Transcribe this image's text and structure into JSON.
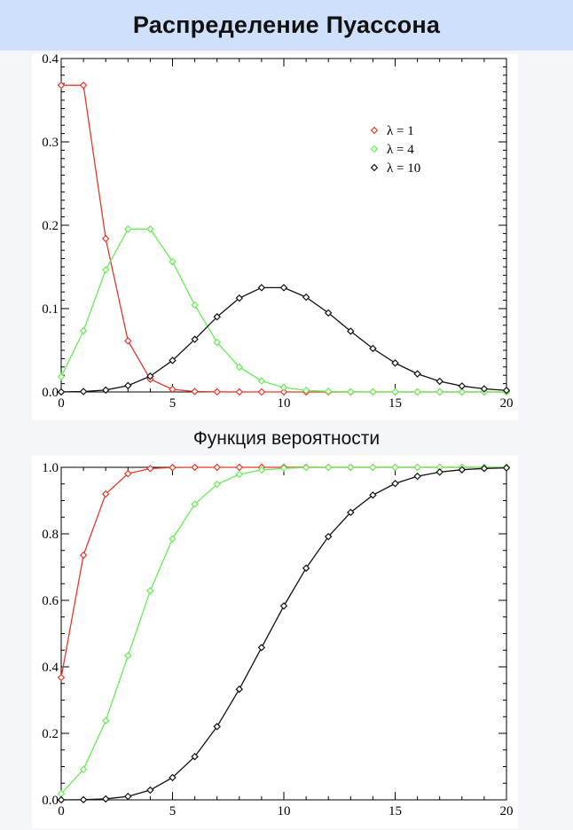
{
  "header": {
    "title": "Распределение Пуассона"
  },
  "caption": {
    "text": "Функция вероятности"
  },
  "chart_data": [
    {
      "type": "line",
      "title": "",
      "xlabel": "",
      "ylabel": "",
      "xlim": [
        0,
        20
      ],
      "ylim": [
        0,
        0.4
      ],
      "xticks": [
        "0",
        "5",
        "10",
        "15",
        "20"
      ],
      "yticks": [
        "0.0",
        "0.1",
        "0.2",
        "0.3",
        "0.4"
      ],
      "legend_position": "top-right",
      "grid": false,
      "x": [
        0,
        1,
        2,
        3,
        4,
        5,
        6,
        7,
        8,
        9,
        10,
        11,
        12,
        13,
        14,
        15,
        16,
        17,
        18,
        19,
        20
      ],
      "series": [
        {
          "name": "λ = 1",
          "color": "#e8372a",
          "values": [
            0.3679,
            0.3679,
            0.1839,
            0.0613,
            0.0153,
            0.0031,
            0.0005,
            0.0001,
            0,
            0,
            0,
            0,
            0,
            0,
            0,
            0,
            0,
            0,
            0,
            0,
            0
          ]
        },
        {
          "name": "λ = 4",
          "color": "#66ee55",
          "values": [
            0.0183,
            0.0733,
            0.1465,
            0.1954,
            0.1954,
            0.1563,
            0.1042,
            0.0595,
            0.0298,
            0.0132,
            0.0053,
            0.0019,
            0.0006,
            0.0002,
            0.0001,
            0,
            0,
            0,
            0,
            0,
            0
          ]
        },
        {
          "name": "λ = 10",
          "color": "#111111",
          "values": [
            5e-05,
            0.0005,
            0.0023,
            0.0076,
            0.0189,
            0.0378,
            0.0631,
            0.0901,
            0.1126,
            0.1251,
            0.1251,
            0.1137,
            0.0948,
            0.0729,
            0.0521,
            0.0347,
            0.0217,
            0.0128,
            0.0071,
            0.0037,
            0.0019
          ]
        }
      ]
    },
    {
      "type": "line",
      "title": "",
      "xlabel": "",
      "ylabel": "",
      "xlim": [
        0,
        20
      ],
      "ylim": [
        0,
        1.0
      ],
      "xticks": [
        "0",
        "5",
        "10",
        "15",
        "20"
      ],
      "yticks": [
        "0.0",
        "0.2",
        "0.4",
        "0.6",
        "0.8",
        "1.0"
      ],
      "grid": false,
      "x": [
        0,
        1,
        2,
        3,
        4,
        5,
        6,
        7,
        8,
        9,
        10,
        11,
        12,
        13,
        14,
        15,
        16,
        17,
        18,
        19,
        20
      ],
      "series": [
        {
          "color": "#e8372a",
          "values": [
            0.3679,
            0.7358,
            0.9197,
            0.981,
            0.9963,
            0.9994,
            0.9999,
            1,
            1,
            1,
            1,
            1,
            1,
            1,
            1,
            1,
            1,
            1,
            1,
            1,
            1
          ]
        },
        {
          "color": "#66ee55",
          "values": [
            0.0183,
            0.0916,
            0.2381,
            0.4335,
            0.6288,
            0.7851,
            0.8893,
            0.9489,
            0.9786,
            0.9919,
            0.9972,
            0.9991,
            0.9997,
            0.9999,
            1,
            1,
            1,
            1,
            1,
            1,
            1
          ]
        },
        {
          "color": "#111111",
          "values": [
            5e-05,
            0.0005,
            0.0028,
            0.0103,
            0.0293,
            0.0671,
            0.1301,
            0.2202,
            0.3328,
            0.4579,
            0.583,
            0.6968,
            0.7916,
            0.8645,
            0.9165,
            0.9513,
            0.973,
            0.9857,
            0.9928,
            0.9965,
            0.9984
          ]
        }
      ]
    }
  ]
}
